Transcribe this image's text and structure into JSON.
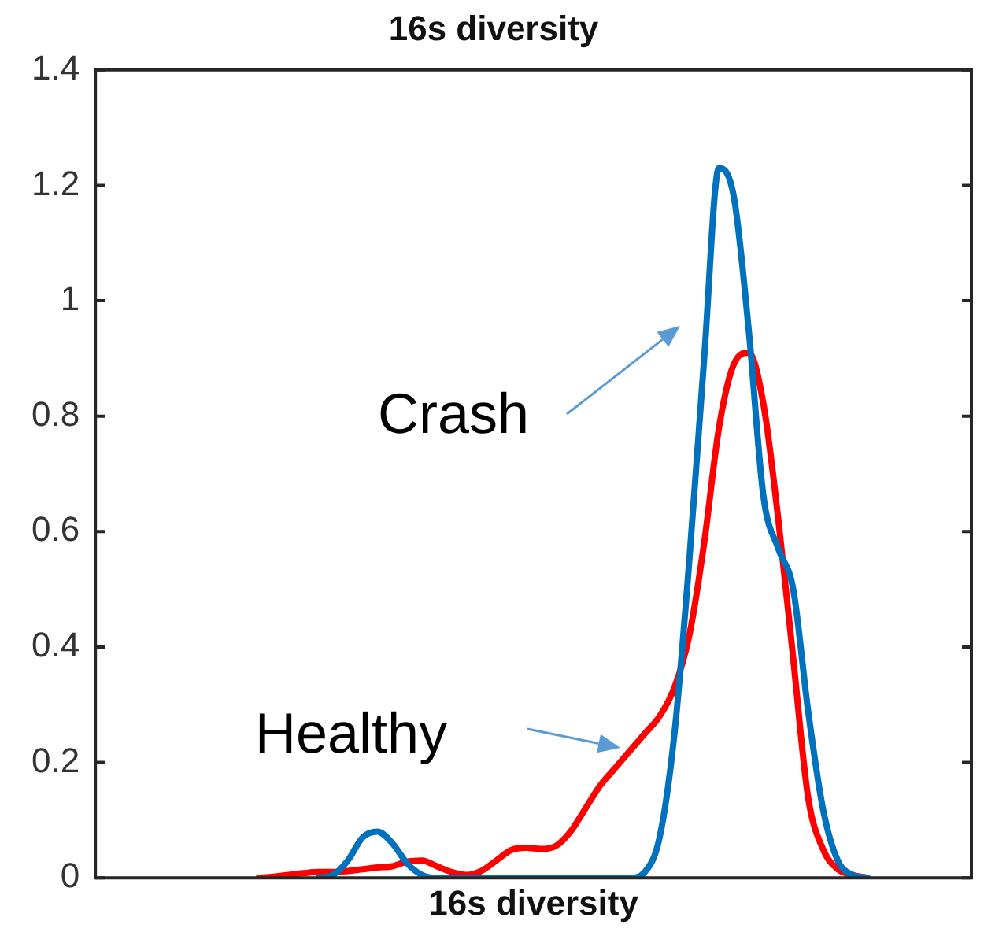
{
  "chart_data": {
    "type": "line",
    "title": "16s diversity",
    "xlabel": "16s diversity",
    "categories": [
      null,
      null,
      null,
      null,
      null,
      null,
      null,
      null,
      null,
      null,
      null,
      null,
      null,
      null,
      null,
      null,
      null,
      null,
      null,
      null,
      null,
      null,
      null,
      null,
      null,
      null,
      null,
      null,
      null,
      null,
      null,
      null,
      null,
      null,
      null,
      null,
      null,
      null,
      null,
      null,
      null,
      null,
      null,
      null,
      null,
      null,
      null,
      null,
      null,
      null,
      null,
      null,
      null,
      null,
      null,
      null,
      null,
      null,
      null,
      null
    ],
    "series": [
      {
        "name": "Crash",
        "color": "#0072bd",
        "values": [
          null,
          null,
          null,
          null,
          null,
          null,
          null,
          null,
          null,
          null,
          null,
          null,
          null,
          null,
          null,
          0,
          0.005,
          0.03,
          0.07,
          0.08,
          0.06,
          0.025,
          0.005,
          0,
          0,
          0,
          0,
          0,
          0,
          0,
          0,
          0,
          0,
          0,
          0,
          0,
          0,
          0.01,
          0.07,
          0.25,
          0.55,
          0.9,
          1.23,
          1.18,
          0.95,
          0.66,
          0.57,
          0.5,
          0.29,
          0.12,
          0.03,
          0.005,
          0,
          null,
          null,
          null,
          null,
          null,
          null,
          null
        ]
      },
      {
        "name": "Healthy",
        "color": "#ff0000",
        "values": [
          null,
          null,
          null,
          null,
          null,
          null,
          null,
          null,
          null,
          null,
          null,
          0,
          0.002,
          0.005,
          0.008,
          0.01,
          0.01,
          0.012,
          0.015,
          0.018,
          0.02,
          0.028,
          0.03,
          0.02,
          0.01,
          0.005,
          0.012,
          0.03,
          0.048,
          0.052,
          0.05,
          0.055,
          0.08,
          0.12,
          0.16,
          0.19,
          0.22,
          0.25,
          0.28,
          0.33,
          0.42,
          0.58,
          0.78,
          0.89,
          0.91,
          0.82,
          0.62,
          0.38,
          0.14,
          0.05,
          0.015,
          0.005,
          0,
          null,
          null,
          null,
          null,
          null,
          null,
          null
        ]
      }
    ],
    "ylim": [
      0,
      1.4
    ],
    "yticks": [
      0,
      0.2,
      0.4,
      0.6,
      0.8,
      1,
      1.2,
      1.4
    ],
    "tick_labels": "y",
    "grid": false,
    "legend": false
  }
}
